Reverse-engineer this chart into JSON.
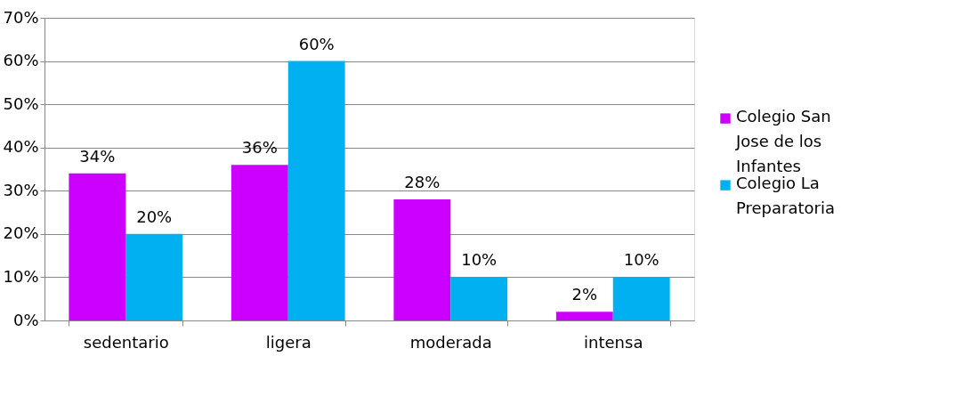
{
  "chart_data": {
    "type": "bar",
    "categories": [
      "sedentario",
      "ligera",
      "moderada",
      "intensa"
    ],
    "series": [
      {
        "name": "Colegio San Jose de los Infantes",
        "color": "#cc00ff",
        "values": [
          34,
          36,
          28,
          2
        ],
        "value_labels": [
          "34%",
          "36%",
          "28%",
          "2%"
        ]
      },
      {
        "name": "Colegio La Preparatoria",
        "color": "#00b0f0",
        "values": [
          20,
          60,
          10,
          10
        ],
        "value_labels": [
          "20%",
          "60%",
          "10%",
          "10%"
        ]
      }
    ],
    "ylim": [
      0,
      70
    ],
    "yticks": [
      {
        "value": 0,
        "label": "0%"
      },
      {
        "value": 10,
        "label": "10%"
      },
      {
        "value": 20,
        "label": "20%"
      },
      {
        "value": 30,
        "label": "30%"
      },
      {
        "value": 40,
        "label": "40%"
      },
      {
        "value": 50,
        "label": "50%"
      },
      {
        "value": 60,
        "label": "60%"
      },
      {
        "value": 70,
        "label": "70%"
      }
    ],
    "grid": "y",
    "legend": "right"
  }
}
